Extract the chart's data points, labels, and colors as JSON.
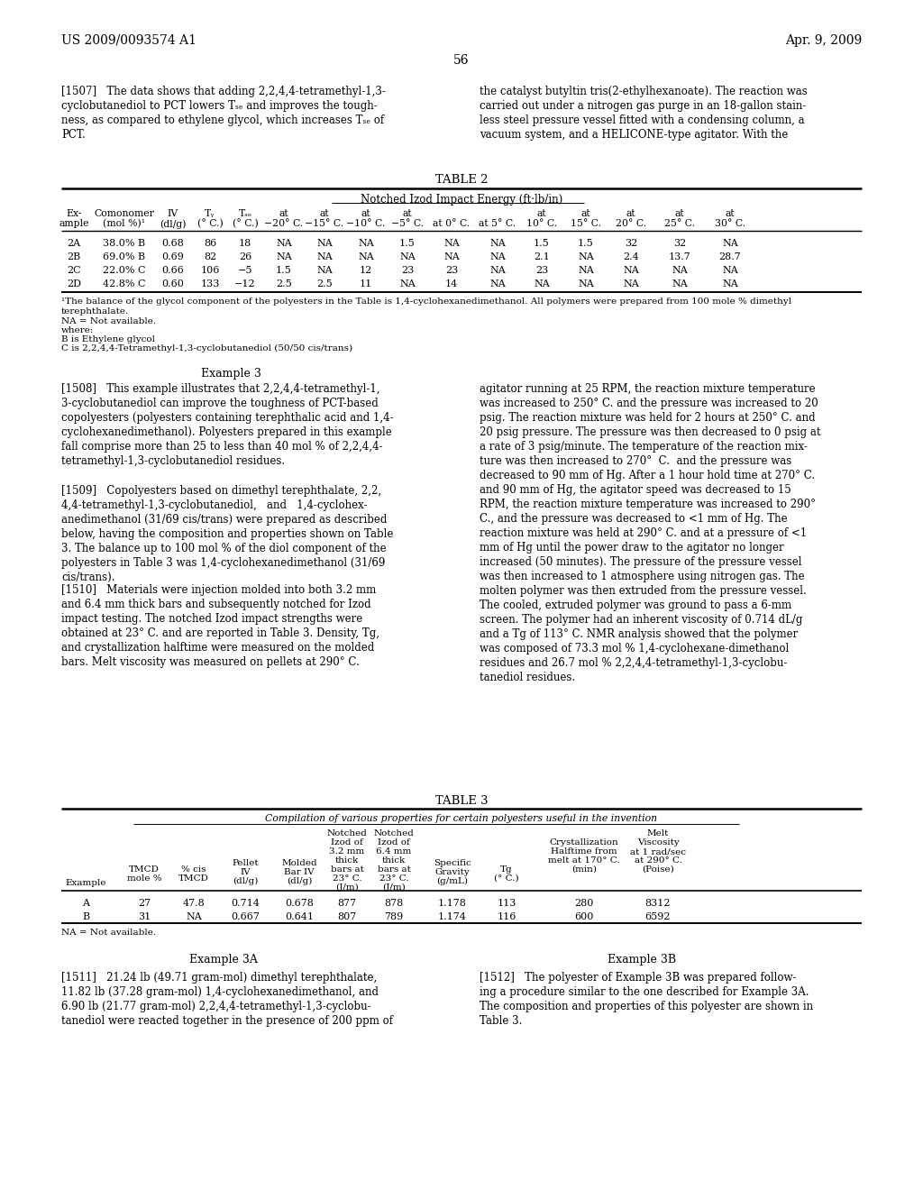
{
  "page_number": "56",
  "header_left": "US 2009/0093574 A1",
  "header_right": "Apr. 9, 2009",
  "para_1507_left": "[1507]   The data shows that adding 2,2,4,4-tetramethyl-1,3-\ncyclobutanediol to PCT lowers Tₛₑ and improves the tough-\nness, as compared to ethylene glycol, which increases Tₛₑ of\nPCT.",
  "para_1507_right": "the catalyst butyltin tris(2-ethylhexanoate). The reaction was\ncarried out under a nitrogen gas purge in an 18-gallon stain-\nless steel pressure vessel fitted with a condensing column, a\nvacuum system, and a HELICONE-type agitator. With the",
  "table2_title": "TABLE 2",
  "table2_subtitle": "Notched Izod Impact Energy (ft·lb/in)",
  "table2_data": [
    [
      "2A",
      "38.0% B",
      "0.68",
      "86",
      "18",
      "NA",
      "NA",
      "NA",
      "1.5",
      "NA",
      "NA",
      "1.5",
      "1.5",
      "32",
      "32",
      "NA"
    ],
    [
      "2B",
      "69.0% B",
      "0.69",
      "82",
      "26",
      "NA",
      "NA",
      "NA",
      "NA",
      "NA",
      "NA",
      "2.1",
      "NA",
      "2.4",
      "13.7",
      "28.7"
    ],
    [
      "2C",
      "22.0% C",
      "0.66",
      "106",
      "−5",
      "1.5",
      "NA",
      "12",
      "23",
      "23",
      "NA",
      "23",
      "NA",
      "NA",
      "NA",
      "NA"
    ],
    [
      "2D",
      "42.8% C",
      "0.60",
      "133",
      "−12",
      "2.5",
      "2.5",
      "11",
      "NA",
      "14",
      "NA",
      "NA",
      "NA",
      "NA",
      "NA",
      "NA"
    ]
  ],
  "table2_fn1": "¹The balance of the glycol component of the polyesters in the Table is 1,4-cyclohexanedimethanol. All polymers were prepared from 100 mole % dimethyl",
  "table2_fn2": "terephthalate.",
  "table2_fn3": "NA = Not available.",
  "table2_fn4": "where:",
  "table2_fn5": "B is Ethylene glycol",
  "table2_fn6": "C is 2,2,4,4-Tetramethyl-1,3-cyclobutanediol (50/50 cis/trans)",
  "example3_title": "Example 3",
  "para_1508": "[1508]   This example illustrates that 2,2,4,4-tetramethyl-1,\n3-cyclobutanediol can improve the toughness of PCT-based\ncopolyesters (polyesters containing terephthalic acid and 1,4-\ncyclohexanedimethanol). Polyesters prepared in this example\nfall comprise more than 25 to less than 40 mol % of 2,2,4,4-\ntetramethyl-1,3-cyclobutanediol residues.",
  "para_1509": "[1509]   Copolyesters based on dimethyl terephthalate, 2,2,\n4,4-tetramethyl-1,3-cyclobutanediol,   and   1,4-cyclohex-\nanedimethanol (31/69 cis/trans) were prepared as described\nbelow, having the composition and properties shown on Table\n3. The balance up to 100 mol % of the diol component of the\npolyesters in Table 3 was 1,4-cyclohexanedimethanol (31/69\ncis/trans).",
  "para_1510": "[1510]   Materials were injection molded into both 3.2 mm\nand 6.4 mm thick bars and subsequently notched for Izod\nimpact testing. The notched Izod impact strengths were\nobtained at 23° C. and are reported in Table 3. Density, Tg,\nand crystallization halftime were measured on the molded\nbars. Melt viscosity was measured on pellets at 290° C.",
  "para_right_1": "agitator running at 25 RPM, the reaction mixture temperature\nwas increased to 250° C. and the pressure was increased to 20\npsig. The reaction mixture was held for 2 hours at 250° C. and\n20 psig pressure. The pressure was then decreased to 0 psig at\na rate of 3 psig/minute. The temperature of the reaction mix-\nture was then increased to 270°  C.  and the pressure was\ndecreased to 90 mm of Hg. After a 1 hour hold time at 270° C.\nand 90 mm of Hg, the agitator speed was decreased to 15\nRPM, the reaction mixture temperature was increased to 290°\nC., and the pressure was decreased to <1 mm of Hg. The\nreaction mixture was held at 290° C. and at a pressure of <1\nmm of Hg until the power draw to the agitator no longer\nincreased (50 minutes). The pressure of the pressure vessel\nwas then increased to 1 atmosphere using nitrogen gas. The\nmolten polymer was then extruded from the pressure vessel.\nThe cooled, extruded polymer was ground to pass a 6-mm\nscreen. The polymer had an inherent viscosity of 0.714 dL/g\nand a Tg of 113° C. NMR analysis showed that the polymer\nwas composed of 73.3 mol % 1,4-cyclohexane-dimethanol\nresidues and 26.7 mol % 2,2,4,4-tetramethyl-1,3-cyclobu-\ntanediol residues.",
  "table3_title": "TABLE 3",
  "table3_subtitle": "Compilation of various properties for certain polyesters useful in the invention",
  "table3_data": [
    [
      "A",
      "27",
      "47.8",
      "0.714",
      "0.678",
      "877",
      "878",
      "1.178",
      "113",
      "280",
      "8312"
    ],
    [
      "B",
      "31",
      "NA",
      "0.667",
      "0.641",
      "807",
      "789",
      "1.174",
      "116",
      "600",
      "6592"
    ]
  ],
  "table3_footnote": "NA = Not available.",
  "example3a_title": "Example 3A",
  "example3b_title": "Example 3B",
  "para_1511": "[1511]   21.24 lb (49.71 gram-mol) dimethyl terephthalate,\n11.82 lb (37.28 gram-mol) 1,4-cyclohexanedimethanol, and\n6.90 lb (21.77 gram-mol) 2,2,4,4-tetramethyl-1,3-cyclobu-\ntanediol were reacted together in the presence of 200 ppm of",
  "para_1512": "[1512]   The polyester of Example 3B was prepared follow-\ning a procedure similar to the one described for Example 3A.\nThe composition and properties of this polyester are shown in\nTable 3."
}
